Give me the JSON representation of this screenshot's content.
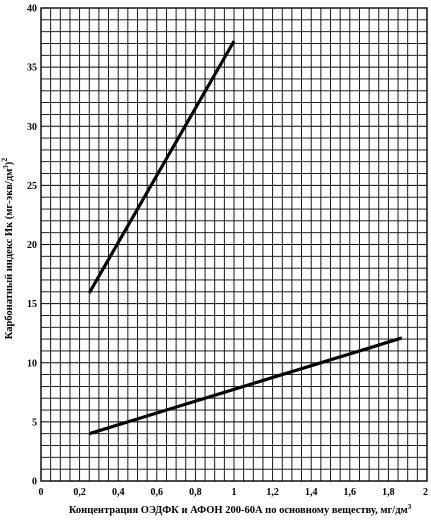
{
  "chart_data": {
    "type": "line",
    "xlabel": "Концентрация ОЭДФК и АФОН 200-60А по основному веществу, мг/дм",
    "xlabel_sup": "3",
    "ylabel": "Карбонатный индекс Ик (мг-экв/дм",
    "ylabel_sup1": "3",
    "ylabel_close": ")",
    "ylabel_sup2": "2",
    "xlim": [
      0,
      2
    ],
    "ylim": [
      0,
      40
    ],
    "x_ticks": [
      "0",
      "0,2",
      "0,4",
      "0,6",
      "0,8",
      "1",
      "1,2",
      "1,4",
      "1,6",
      "1,8",
      "2"
    ],
    "y_ticks": [
      "0",
      "5",
      "10",
      "15",
      "20",
      "25",
      "30",
      "35",
      "40"
    ],
    "grid": true,
    "minor_grid_x_step": 0.05,
    "minor_grid_y_step": 1,
    "series": [
      {
        "x": [
          0.25,
          1.0
        ],
        "y": [
          15.9,
          37.2
        ]
      },
      {
        "x": [
          0.25,
          1.87
        ],
        "y": [
          4.0,
          12.1
        ]
      }
    ]
  }
}
